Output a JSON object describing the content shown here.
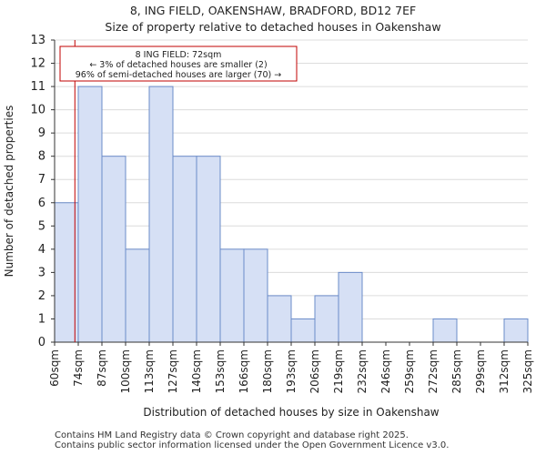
{
  "page": {
    "title": "8, ING FIELD, OAKENSHAW, BRADFORD, BD12 7EF",
    "subtitle": "Size of property relative to detached houses in Oakenshaw",
    "footer_line1": "Contains HM Land Registry data © Crown copyright and database right 2025.",
    "footer_line2": "Contains public sector information licensed under the Open Government Licence v3.0."
  },
  "chart_data": {
    "type": "bar",
    "xlabel": "Distribution of detached houses by size in Oakenshaw",
    "ylabel": "Number of detached properties",
    "bin_edges": [
      "60sqm",
      "74sqm",
      "87sqm",
      "100sqm",
      "113sqm",
      "127sqm",
      "140sqm",
      "153sqm",
      "166sqm",
      "180sqm",
      "193sqm",
      "206sqm",
      "219sqm",
      "232sqm",
      "246sqm",
      "259sqm",
      "272sqm",
      "285sqm",
      "299sqm",
      "312sqm",
      "325sqm"
    ],
    "values": [
      6,
      11,
      8,
      4,
      11,
      8,
      8,
      4,
      4,
      2,
      1,
      2,
      3,
      0,
      0,
      0,
      1,
      0,
      0,
      1
    ],
    "ylim": [
      0,
      13
    ],
    "yticks": [
      0,
      1,
      2,
      3,
      4,
      5,
      6,
      7,
      8,
      9,
      10,
      11,
      12,
      13
    ],
    "grid": true,
    "bar_fill": "#d6e0f5",
    "bar_stroke": "#6b8cc9",
    "marker": {
      "value": 72,
      "color": "#c00000",
      "annotation": [
        "8 ING FIELD: 72sqm",
        "← 3% of detached houses are smaller (2)",
        "96% of semi-detached houses are larger (70) →"
      ]
    }
  }
}
